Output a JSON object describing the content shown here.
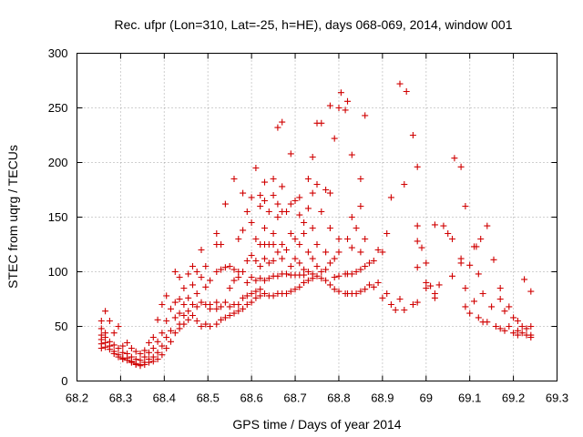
{
  "chart_data": {
    "type": "scatter",
    "title": "Rec. ufpr (Lon=310, Lat=-25, h=HE), days 068-069, 2014, window 001",
    "xlabel": "GPS time / Days of year 2014",
    "ylabel": "STEC from uqrg / TECUs",
    "xlim": [
      68.2,
      69.3
    ],
    "ylim": [
      0,
      300
    ],
    "xticks": [
      "68.2",
      "68.3",
      "68.4",
      "68.5",
      "68.6",
      "68.7",
      "68.8",
      "68.9",
      "69",
      "69.1",
      "69.2",
      "69.3"
    ],
    "yticks": [
      "0",
      "50",
      "100",
      "150",
      "200",
      "250",
      "300"
    ],
    "grid": true,
    "marker": "plus",
    "color": "#d00000",
    "points": [
      [
        68.256,
        55
      ],
      [
        68.256,
        48
      ],
      [
        68.256,
        42
      ],
      [
        68.256,
        38
      ],
      [
        68.256,
        34
      ],
      [
        68.256,
        30
      ],
      [
        68.265,
        64
      ],
      [
        68.265,
        44
      ],
      [
        68.265,
        40
      ],
      [
        68.265,
        35
      ],
      [
        68.265,
        31
      ],
      [
        68.275,
        55
      ],
      [
        68.275,
        36
      ],
      [
        68.275,
        32
      ],
      [
        68.275,
        29
      ],
      [
        68.285,
        44
      ],
      [
        68.285,
        33
      ],
      [
        68.285,
        27
      ],
      [
        68.285,
        25
      ],
      [
        68.295,
        50
      ],
      [
        68.295,
        30
      ],
      [
        68.295,
        24
      ],
      [
        68.295,
        22
      ],
      [
        68.305,
        32
      ],
      [
        68.305,
        26
      ],
      [
        68.305,
        21
      ],
      [
        68.305,
        20
      ],
      [
        68.315,
        35
      ],
      [
        68.315,
        25
      ],
      [
        68.315,
        21
      ],
      [
        68.315,
        19
      ],
      [
        68.325,
        30
      ],
      [
        68.325,
        22
      ],
      [
        68.325,
        18
      ],
      [
        68.325,
        17
      ],
      [
        68.335,
        27
      ],
      [
        68.335,
        20
      ],
      [
        68.335,
        16
      ],
      [
        68.335,
        15
      ],
      [
        68.345,
        25
      ],
      [
        68.345,
        19
      ],
      [
        68.345,
        15
      ],
      [
        68.345,
        14
      ],
      [
        68.355,
        28
      ],
      [
        68.355,
        22
      ],
      [
        68.355,
        17
      ],
      [
        68.355,
        15
      ],
      [
        68.365,
        35
      ],
      [
        68.365,
        26
      ],
      [
        68.365,
        20
      ],
      [
        68.365,
        17
      ],
      [
        68.375,
        40
      ],
      [
        68.375,
        30
      ],
      [
        68.375,
        22
      ],
      [
        68.375,
        18
      ],
      [
        68.385,
        56
      ],
      [
        68.385,
        36
      ],
      [
        68.385,
        26
      ],
      [
        68.385,
        20
      ],
      [
        68.395,
        70
      ],
      [
        68.395,
        44
      ],
      [
        68.395,
        32
      ],
      [
        68.395,
        24
      ],
      [
        68.405,
        78
      ],
      [
        68.405,
        55
      ],
      [
        68.405,
        40
      ],
      [
        68.405,
        30
      ],
      [
        68.415,
        66
      ],
      [
        68.415,
        46
      ],
      [
        68.415,
        36
      ],
      [
        68.425,
        100
      ],
      [
        68.425,
        72
      ],
      [
        68.425,
        58
      ],
      [
        68.425,
        44
      ],
      [
        68.435,
        95
      ],
      [
        68.435,
        75
      ],
      [
        68.435,
        62
      ],
      [
        68.435,
        52
      ],
      [
        68.435,
        48
      ],
      [
        68.445,
        85
      ],
      [
        68.445,
        70
      ],
      [
        68.445,
        60
      ],
      [
        68.445,
        52
      ],
      [
        68.455,
        98
      ],
      [
        68.455,
        76
      ],
      [
        68.455,
        64
      ],
      [
        68.455,
        56
      ],
      [
        68.465,
        105
      ],
      [
        68.465,
        88
      ],
      [
        68.465,
        70
      ],
      [
        68.465,
        60
      ],
      [
        68.475,
        100
      ],
      [
        68.475,
        80
      ],
      [
        68.475,
        68
      ],
      [
        68.475,
        55
      ],
      [
        68.485,
        120
      ],
      [
        68.485,
        95
      ],
      [
        68.485,
        72
      ],
      [
        68.485,
        50
      ],
      [
        68.495,
        105
      ],
      [
        68.495,
        86
      ],
      [
        68.495,
        70
      ],
      [
        68.495,
        52
      ],
      [
        68.505,
        92
      ],
      [
        68.505,
        70
      ],
      [
        68.505,
        66
      ],
      [
        68.505,
        50
      ],
      [
        68.52,
        135
      ],
      [
        68.52,
        125
      ],
      [
        68.52,
        100
      ],
      [
        68.52,
        72
      ],
      [
        68.52,
        66
      ],
      [
        68.52,
        52
      ],
      [
        68.53,
        125
      ],
      [
        68.53,
        102
      ],
      [
        68.53,
        68
      ],
      [
        68.53,
        56
      ],
      [
        68.54,
        162
      ],
      [
        68.54,
        104
      ],
      [
        68.54,
        72
      ],
      [
        68.54,
        58
      ],
      [
        68.55,
        105
      ],
      [
        68.55,
        85
      ],
      [
        68.55,
        68
      ],
      [
        68.55,
        60
      ],
      [
        68.56,
        185
      ],
      [
        68.56,
        102
      ],
      [
        68.56,
        92
      ],
      [
        68.56,
        70
      ],
      [
        68.56,
        62
      ],
      [
        68.57,
        130
      ],
      [
        68.57,
        100
      ],
      [
        68.57,
        95
      ],
      [
        68.57,
        70
      ],
      [
        68.57,
        64
      ],
      [
        68.58,
        172
      ],
      [
        68.58,
        138
      ],
      [
        68.58,
        100
      ],
      [
        68.58,
        76
      ],
      [
        68.58,
        66
      ],
      [
        68.59,
        155
      ],
      [
        68.59,
        110
      ],
      [
        68.59,
        90
      ],
      [
        68.59,
        78
      ],
      [
        68.59,
        70
      ],
      [
        68.6,
        168
      ],
      [
        68.6,
        145
      ],
      [
        68.6,
        115
      ],
      [
        68.6,
        95
      ],
      [
        68.6,
        80
      ],
      [
        68.6,
        72
      ],
      [
        68.61,
        195
      ],
      [
        68.61,
        130
      ],
      [
        68.61,
        110
      ],
      [
        68.61,
        92
      ],
      [
        68.61,
        82
      ],
      [
        68.61,
        76
      ],
      [
        68.62,
        170
      ],
      [
        68.62,
        160
      ],
      [
        68.62,
        125
      ],
      [
        68.62,
        105
      ],
      [
        68.62,
        94
      ],
      [
        68.62,
        84
      ],
      [
        68.62,
        78
      ],
      [
        68.63,
        182
      ],
      [
        68.63,
        165
      ],
      [
        68.63,
        140
      ],
      [
        68.63,
        125
      ],
      [
        68.63,
        112
      ],
      [
        68.63,
        92
      ],
      [
        68.63,
        80
      ],
      [
        68.64,
        155
      ],
      [
        68.64,
        125
      ],
      [
        68.64,
        108
      ],
      [
        68.64,
        94
      ],
      [
        68.64,
        78
      ],
      [
        68.65,
        185
      ],
      [
        68.65,
        170
      ],
      [
        68.65,
        135
      ],
      [
        68.65,
        125
      ],
      [
        68.65,
        110
      ],
      [
        68.65,
        96
      ],
      [
        68.65,
        78
      ],
      [
        68.66,
        232
      ],
      [
        68.66,
        162
      ],
      [
        68.66,
        150
      ],
      [
        68.66,
        118
      ],
      [
        68.66,
        96
      ],
      [
        68.66,
        80
      ],
      [
        68.67,
        237
      ],
      [
        68.67,
        178
      ],
      [
        68.67,
        155
      ],
      [
        68.67,
        125
      ],
      [
        68.67,
        112
      ],
      [
        68.67,
        98
      ],
      [
        68.67,
        80
      ],
      [
        68.68,
        155
      ],
      [
        68.68,
        120
      ],
      [
        68.68,
        98
      ],
      [
        68.68,
        80
      ],
      [
        68.69,
        208
      ],
      [
        68.69,
        162
      ],
      [
        68.69,
        135
      ],
      [
        68.69,
        105
      ],
      [
        68.69,
        97
      ],
      [
        68.69,
        82
      ],
      [
        68.7,
        165
      ],
      [
        68.7,
        130
      ],
      [
        68.7,
        112
      ],
      [
        68.7,
        97
      ],
      [
        68.7,
        84
      ],
      [
        68.71,
        168
      ],
      [
        68.71,
        152
      ],
      [
        68.71,
        125
      ],
      [
        68.71,
        108
      ],
      [
        68.71,
        97
      ],
      [
        68.71,
        86
      ],
      [
        68.72,
        145
      ],
      [
        68.72,
        135
      ],
      [
        68.72,
        102
      ],
      [
        68.72,
        97
      ],
      [
        68.72,
        90
      ],
      [
        68.73,
        185
      ],
      [
        68.73,
        158
      ],
      [
        68.73,
        118
      ],
      [
        68.73,
        100
      ],
      [
        68.73,
        92
      ],
      [
        68.74,
        205
      ],
      [
        68.74,
        172
      ],
      [
        68.74,
        140
      ],
      [
        68.74,
        112
      ],
      [
        68.74,
        98
      ],
      [
        68.74,
        94
      ],
      [
        68.75,
        236
      ],
      [
        68.75,
        180
      ],
      [
        68.75,
        125
      ],
      [
        68.75,
        105
      ],
      [
        68.75,
        96
      ],
      [
        68.76,
        236
      ],
      [
        68.76,
        155
      ],
      [
        68.76,
        100
      ],
      [
        68.76,
        94
      ],
      [
        68.77,
        175
      ],
      [
        68.77,
        118
      ],
      [
        68.77,
        102
      ],
      [
        68.77,
        92
      ],
      [
        68.78,
        252
      ],
      [
        68.78,
        172
      ],
      [
        68.78,
        140
      ],
      [
        68.78,
        108
      ],
      [
        68.78,
        88
      ],
      [
        68.79,
        222
      ],
      [
        68.79,
        112
      ],
      [
        68.79,
        95
      ],
      [
        68.79,
        84
      ],
      [
        68.8,
        250
      ],
      [
        68.8,
        130
      ],
      [
        68.8,
        118
      ],
      [
        68.8,
        96
      ],
      [
        68.8,
        82
      ],
      [
        68.805,
        264
      ],
      [
        68.815,
        248
      ],
      [
        68.815,
        98
      ],
      [
        68.815,
        80
      ],
      [
        68.82,
        256
      ],
      [
        68.82,
        130
      ],
      [
        68.82,
        98
      ],
      [
        68.82,
        80
      ],
      [
        68.83,
        207
      ],
      [
        68.83,
        150
      ],
      [
        68.83,
        122
      ],
      [
        68.83,
        98
      ],
      [
        68.83,
        80
      ],
      [
        68.84,
        140
      ],
      [
        68.84,
        100
      ],
      [
        68.84,
        80
      ],
      [
        68.85,
        185
      ],
      [
        68.85,
        160
      ],
      [
        68.85,
        118
      ],
      [
        68.85,
        102
      ],
      [
        68.85,
        82
      ],
      [
        68.86,
        243
      ],
      [
        68.86,
        130
      ],
      [
        68.86,
        105
      ],
      [
        68.86,
        84
      ],
      [
        68.87,
        108
      ],
      [
        68.87,
        88
      ],
      [
        68.88,
        110
      ],
      [
        68.88,
        86
      ],
      [
        68.89,
        120
      ],
      [
        68.89,
        90
      ],
      [
        68.9,
        118
      ],
      [
        68.9,
        76
      ],
      [
        68.91,
        135
      ],
      [
        68.91,
        80
      ],
      [
        68.92,
        168
      ],
      [
        68.92,
        70
      ],
      [
        68.93,
        65
      ],
      [
        68.94,
        272
      ],
      [
        68.94,
        75
      ],
      [
        68.95,
        180
      ],
      [
        68.95,
        65
      ],
      [
        68.955,
        265
      ],
      [
        68.97,
        225
      ],
      [
        68.97,
        70
      ],
      [
        68.98,
        196
      ],
      [
        68.98,
        142
      ],
      [
        68.98,
        128
      ],
      [
        68.98,
        104
      ],
      [
        68.98,
        72
      ],
      [
        68.99,
        122
      ],
      [
        69.0,
        108
      ],
      [
        69.0,
        90
      ],
      [
        69.0,
        85
      ],
      [
        69.01,
        87
      ],
      [
        69.02,
        143
      ],
      [
        69.02,
        80
      ],
      [
        69.02,
        76
      ],
      [
        69.03,
        88
      ],
      [
        69.04,
        142
      ],
      [
        69.05,
        135
      ],
      [
        69.06,
        130
      ],
      [
        69.06,
        96
      ],
      [
        69.065,
        204
      ],
      [
        69.08,
        196
      ],
      [
        69.08,
        112
      ],
      [
        69.08,
        108
      ],
      [
        69.09,
        160
      ],
      [
        69.09,
        85
      ],
      [
        69.09,
        68
      ],
      [
        69.1,
        106
      ],
      [
        69.1,
        62
      ],
      [
        69.11,
        123
      ],
      [
        69.11,
        73
      ],
      [
        69.115,
        123
      ],
      [
        69.12,
        98
      ],
      [
        69.12,
        58
      ],
      [
        69.125,
        130
      ],
      [
        69.13,
        80
      ],
      [
        69.13,
        54
      ],
      [
        69.14,
        142
      ],
      [
        69.14,
        54
      ],
      [
        69.15,
        68
      ],
      [
        69.155,
        111
      ],
      [
        69.16,
        50
      ],
      [
        69.17,
        85
      ],
      [
        69.17,
        75
      ],
      [
        69.17,
        48
      ],
      [
        69.18,
        64
      ],
      [
        69.18,
        46
      ],
      [
        69.19,
        68
      ],
      [
        69.19,
        50
      ],
      [
        69.2,
        58
      ],
      [
        69.2,
        44
      ],
      [
        69.21,
        55
      ],
      [
        69.21,
        46
      ],
      [
        69.21,
        42
      ],
      [
        69.22,
        50
      ],
      [
        69.22,
        44
      ],
      [
        69.225,
        93
      ],
      [
        69.23,
        48
      ],
      [
        69.23,
        42
      ],
      [
        69.24,
        82
      ],
      [
        69.24,
        50
      ],
      [
        69.24,
        42
      ],
      [
        69.24,
        40
      ]
    ]
  }
}
